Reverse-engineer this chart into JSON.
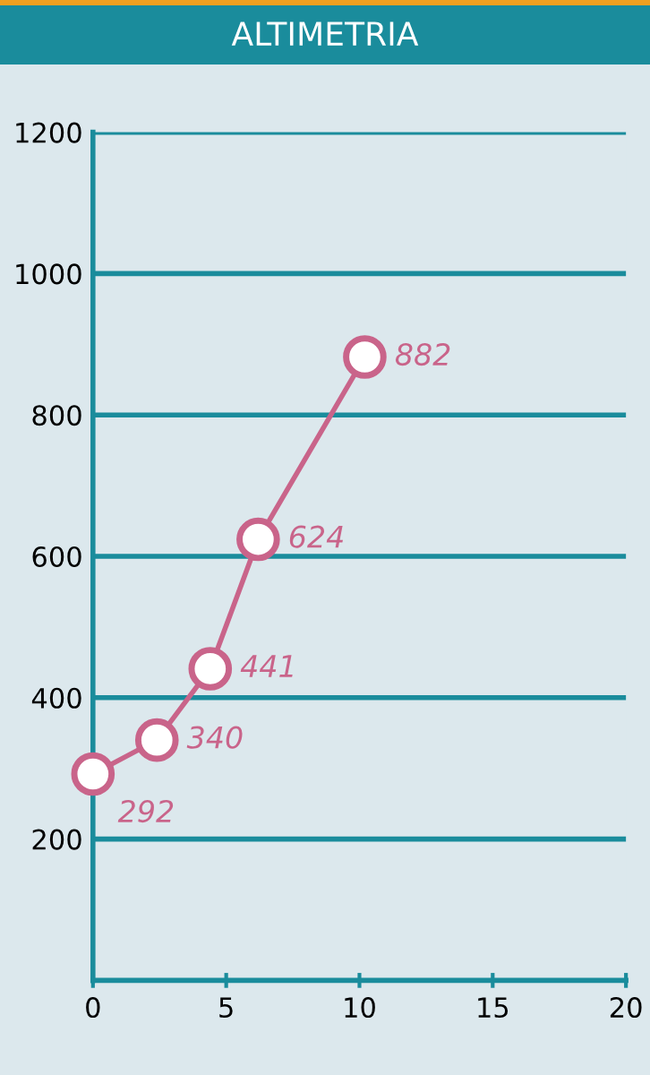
{
  "chart_data": {
    "type": "line",
    "title": "ALTIMETRIA",
    "x": [
      0,
      2.4,
      4.4,
      6.2,
      10.2
    ],
    "series": [
      {
        "color": "#c9648a",
        "values": [
          292,
          340,
          441,
          624,
          882
        ]
      }
    ],
    "data_labels": true,
    "marker": "circle",
    "line_style": "solid",
    "xlim": [
      0,
      20
    ],
    "xticks": [
      0,
      5,
      10,
      15,
      20
    ],
    "ylim": [
      0,
      1200
    ],
    "yticks": [
      200,
      400,
      600,
      800,
      1000,
      1200
    ],
    "grid": "y",
    "legend": false
  }
}
